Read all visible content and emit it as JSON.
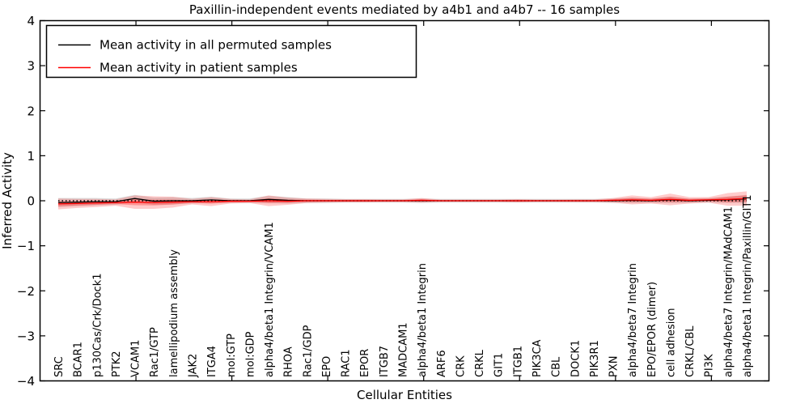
{
  "chart_data": {
    "type": "line",
    "title": "Paxillin-independent events mediated by a4b1 and a4b7 -- 16 samples",
    "xlabel": "Cellular Entities",
    "ylabel": "Inferred Activity",
    "ylim": [
      -4,
      4
    ],
    "yticks": [
      -4,
      -3,
      -2,
      -1,
      0,
      1,
      2,
      3,
      4
    ],
    "ytick_labels": [
      "−4",
      "−3",
      "−2",
      "−1",
      "0",
      "1",
      "2",
      "3",
      "4"
    ],
    "x_axis_range": [
      0,
      38
    ],
    "xtick_units": [
      5,
      10,
      15,
      20,
      25,
      30,
      35
    ],
    "grid": false,
    "legend_position": "upper-left",
    "categories": [
      "SRC",
      "BCAR1",
      "p130Cas/Crk/Dock1",
      "PTK2",
      "VCAM1",
      "Rac1/GTP",
      "lamellipodium assembly",
      "JAK2",
      "ITGA4",
      "mol:GTP",
      "mol:GDP",
      "alpha4/beta1 Integrin/VCAM1",
      "RHOA",
      "Rac1/GDP",
      "EPO",
      "RAC1",
      "EPOR",
      "ITGB7",
      "MADCAM1",
      "alpha4/beta1 Integrin",
      "ARF6",
      "CRK",
      "CRKL",
      "GIT1",
      "ITGB1",
      "PIK3CA",
      "CBL",
      "DOCK1",
      "PIK3R1",
      "PXN",
      "alpha4/beta7 Integrin",
      "EPO/EPOR (dimer)",
      "cell adhesion",
      "CRKL/CBL",
      "PI3K",
      "alpha4/beta7 Integrin/MAdCAM1",
      "alpha4/beta1 Integrin/Paxillin/GIT1"
    ],
    "series": [
      {
        "name": "Mean activity in all permuted samples",
        "color": "#000000",
        "values": [
          -0.04,
          -0.03,
          -0.02,
          -0.02,
          0.05,
          -0.01,
          0.0,
          0.0,
          0.02,
          0.0,
          0.0,
          0.03,
          0.01,
          0.0,
          0.0,
          0.0,
          0.0,
          0.0,
          0.0,
          0.0,
          0.0,
          0.0,
          0.0,
          0.0,
          0.0,
          0.0,
          0.0,
          0.0,
          0.0,
          0.0,
          0.01,
          0.0,
          0.02,
          0.0,
          0.01,
          0.02,
          0.04
        ]
      },
      {
        "name": "Mean activity in patient samples",
        "color": "#ff0000",
        "values": [
          -0.07,
          -0.06,
          -0.05,
          -0.04,
          -0.03,
          -0.04,
          -0.03,
          -0.02,
          -0.02,
          -0.01,
          -0.01,
          0.0,
          -0.01,
          0.0,
          0.0,
          0.0,
          0.0,
          0.0,
          0.0,
          0.01,
          0.0,
          0.0,
          0.0,
          0.0,
          0.0,
          0.0,
          0.0,
          0.0,
          0.0,
          0.01,
          0.02,
          0.01,
          0.03,
          0.01,
          0.02,
          0.03,
          0.05
        ]
      }
    ],
    "bands": [
      {
        "name": "permuted-std-band",
        "series": 0,
        "color": "#999999",
        "opacity": 0.35,
        "half_widths": [
          0.1,
          0.09,
          0.08,
          0.07,
          0.08,
          0.08,
          0.08,
          0.06,
          0.07,
          0.05,
          0.05,
          0.08,
          0.07,
          0.05,
          0.05,
          0.04,
          0.04,
          0.04,
          0.04,
          0.05,
          0.04,
          0.04,
          0.04,
          0.04,
          0.04,
          0.04,
          0.04,
          0.04,
          0.04,
          0.05,
          0.06,
          0.05,
          0.07,
          0.05,
          0.05,
          0.07,
          0.09
        ]
      },
      {
        "name": "patient-std-band-outer",
        "series": 1,
        "color": "#ff4444",
        "opacity": 0.28,
        "half_widths": [
          0.12,
          0.1,
          0.09,
          0.07,
          0.15,
          0.14,
          0.12,
          0.06,
          0.1,
          0.05,
          0.04,
          0.12,
          0.08,
          0.05,
          0.04,
          0.035,
          0.035,
          0.03,
          0.03,
          0.05,
          0.025,
          0.025,
          0.025,
          0.025,
          0.035,
          0.025,
          0.025,
          0.03,
          0.03,
          0.05,
          0.1,
          0.07,
          0.13,
          0.07,
          0.06,
          0.14,
          0.16
        ]
      },
      {
        "name": "patient-std-band-inner",
        "series": 1,
        "color": "#ff2222",
        "opacity": 0.32,
        "half_widths": [
          0.054,
          0.045,
          0.04,
          0.032,
          0.068,
          0.063,
          0.054,
          0.027,
          0.045,
          0.023,
          0.018,
          0.054,
          0.036,
          0.023,
          0.018,
          0.016,
          0.016,
          0.014,
          0.014,
          0.023,
          0.011,
          0.011,
          0.011,
          0.011,
          0.016,
          0.011,
          0.011,
          0.014,
          0.014,
          0.023,
          0.045,
          0.032,
          0.059,
          0.032,
          0.027,
          0.063,
          0.072
        ]
      }
    ],
    "zero_line": {
      "value": 0,
      "style": "dotted",
      "color": "#000000"
    }
  }
}
